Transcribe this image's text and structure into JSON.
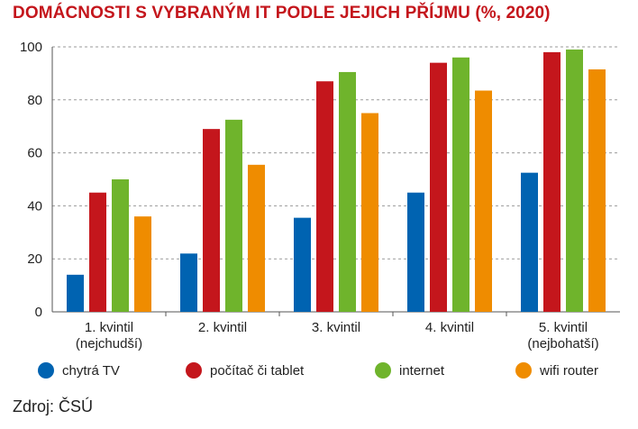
{
  "chart_data": {
    "type": "bar",
    "title": "DOMÁCNOSTI S VYBRANÝM IT PODLE JEJICH PŘÍJMU (%, 2020)",
    "categories": [
      [
        "1. kvintil",
        "(nejchudší)"
      ],
      [
        "2. kvintil"
      ],
      [
        "3. kvintil"
      ],
      [
        "4. kvintil"
      ],
      [
        "5. kvintil",
        "(nejbohatší)"
      ]
    ],
    "series": [
      {
        "name": "chytrá TV",
        "color": "#0063b1",
        "values": [
          14,
          22,
          35.5,
          45,
          52.5
        ]
      },
      {
        "name": "počítač či tablet",
        "color": "#c4161c",
        "values": [
          45,
          69,
          87,
          94,
          98
        ]
      },
      {
        "name": "internet",
        "color": "#6fb42c",
        "values": [
          50,
          72.5,
          90.5,
          96,
          99
        ]
      },
      {
        "name": "wifi router",
        "color": "#ef8c00",
        "values": [
          36,
          55.5,
          75,
          83.5,
          91.5
        ]
      }
    ],
    "ylim": [
      0,
      100
    ],
    "yticks": [
      0,
      20,
      40,
      60,
      80,
      100
    ],
    "grid": true,
    "legend_position": "bottom"
  },
  "source": "Zdroj: ČSÚ"
}
